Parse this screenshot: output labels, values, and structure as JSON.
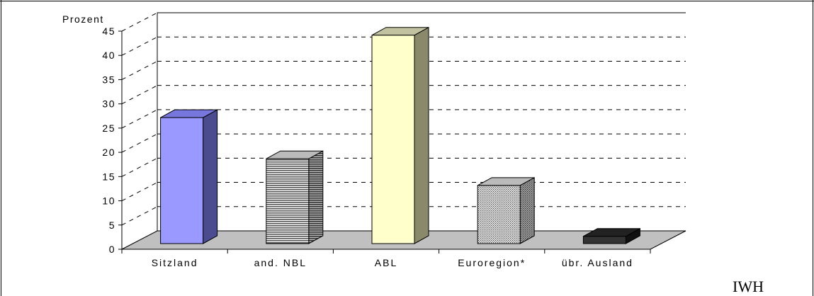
{
  "chart_data": {
    "type": "bar",
    "style": "3d",
    "categories": [
      "Sitzland",
      "and. NBL",
      "ABL",
      "Euroregion*",
      "übr. Ausland"
    ],
    "values": [
      26,
      17.5,
      43,
      12,
      1.5
    ],
    "ylabel": "Prozent",
    "ylim": [
      0,
      45
    ],
    "yticks": [
      0,
      5,
      10,
      15,
      20,
      25,
      30,
      35,
      40,
      45
    ],
    "grid": true,
    "colors": [
      "#9999ff",
      "#d0d0d0",
      "#ffffcc",
      "#d8d8d8",
      "#333333"
    ],
    "side_colors": [
      "#4b4b8f",
      "#5e5e5e",
      "#8a8a6a",
      "#5e5e5e",
      "#111111"
    ],
    "top_colors": [
      "#7777dd",
      "#bbbbbb",
      "#c2c2a0",
      "#bbbbbb",
      "#222222"
    ],
    "patterns": [
      "solid",
      "horizontal-lines",
      "solid",
      "dots",
      "solid"
    ]
  },
  "source": "IWH"
}
